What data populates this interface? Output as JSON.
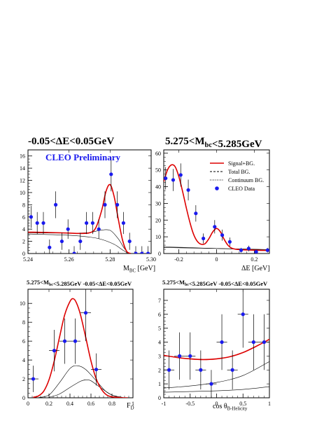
{
  "colors": {
    "fit": "#dd0000",
    "point": "#1a1aee",
    "bg": "#000000"
  },
  "chart_data": [
    {
      "type": "scatter",
      "title": "-0.05<ΔE<0.05GeV",
      "annotation": "CLEO Preliminary",
      "xlabel": "M_BC [GeV]",
      "ylabel": "",
      "xlim": [
        5.24,
        5.3
      ],
      "ylim": [
        0,
        17
      ],
      "xticks": [
        5.24,
        5.26,
        5.28,
        5.3
      ],
      "yticks": [
        0,
        2,
        4,
        6,
        8,
        10,
        12,
        14,
        16
      ],
      "grid": false,
      "points": [
        {
          "x": 5.2415,
          "y": 6,
          "ey": 1.8
        },
        {
          "x": 5.2445,
          "y": 5,
          "ey": 1.8
        },
        {
          "x": 5.2475,
          "y": 5,
          "ey": 1.8
        },
        {
          "x": 5.2505,
          "y": 1,
          "ey": 1.3
        },
        {
          "x": 5.2535,
          "y": 8,
          "ey": 2.2
        },
        {
          "x": 5.2565,
          "y": 2,
          "ey": 1.4
        },
        {
          "x": 5.2595,
          "y": 4,
          "ey": 1.6
        },
        {
          "x": 5.2625,
          "y": 0,
          "ey": 1.2
        },
        {
          "x": 5.2655,
          "y": 2,
          "ey": 1.4
        },
        {
          "x": 5.2685,
          "y": 5,
          "ey": 1.8
        },
        {
          "x": 5.2715,
          "y": 5,
          "ey": 1.8
        },
        {
          "x": 5.2745,
          "y": 4,
          "ey": 1.6
        },
        {
          "x": 5.2775,
          "y": 8,
          "ey": 2.2
        },
        {
          "x": 5.2805,
          "y": 13,
          "ey": 2.8
        },
        {
          "x": 5.2835,
          "y": 8,
          "ey": 2.2
        },
        {
          "x": 5.2865,
          "y": 5,
          "ey": 1.8
        },
        {
          "x": 5.2895,
          "y": 2,
          "ey": 1.4
        },
        {
          "x": 5.2925,
          "y": 0,
          "ey": 1.2
        },
        {
          "x": 5.2955,
          "y": 0,
          "ey": 1.2
        },
        {
          "x": 5.2985,
          "y": 0,
          "ey": 1.2
        }
      ],
      "series": [
        {
          "name": "Signal+BG.",
          "style": "red",
          "x": [
            5.24,
            5.25,
            5.26,
            5.265,
            5.27,
            5.273,
            5.276,
            5.278,
            5.28,
            5.282,
            5.284,
            5.286,
            5.288,
            5.29
          ],
          "y": [
            3.5,
            3.45,
            3.35,
            3.3,
            3.4,
            4.2,
            7.2,
            10.2,
            11.3,
            9.3,
            5.6,
            2.3,
            0.4,
            0
          ]
        },
        {
          "name": "Total BG.",
          "style": "thin",
          "x": [
            5.24,
            5.26,
            5.27,
            5.275,
            5.28,
            5.284,
            5.287,
            5.289
          ],
          "y": [
            3.4,
            3.35,
            3.45,
            3.8,
            3.8,
            2.4,
            0.8,
            0
          ]
        },
        {
          "name": "Continuum BG.",
          "style": "thin",
          "x": [
            5.24,
            5.26,
            5.27,
            5.276,
            5.282,
            5.286,
            5.289
          ],
          "y": [
            3.2,
            3.0,
            2.7,
            2.3,
            1.5,
            0.6,
            0
          ]
        }
      ]
    },
    {
      "type": "scatter",
      "title": "5.275<M_bc<5.285GeV",
      "xlabel": "ΔE [GeV]",
      "ylabel": "",
      "xlim": [
        -0.28,
        0.28
      ],
      "ylim": [
        0,
        62
      ],
      "xticks": [
        -0.2,
        0,
        0.2
      ],
      "yticks": [
        0,
        10,
        20,
        30,
        40,
        50,
        60
      ],
      "grid": false,
      "legend": {
        "position": "top-right",
        "entries": [
          {
            "label": "Signal+BG.",
            "style": "red"
          },
          {
            "label": "Total BG.",
            "style": "dash"
          },
          {
            "label": "Continuum BG.",
            "style": "dot"
          },
          {
            "label": "CLEO Data",
            "style": "point"
          }
        ]
      },
      "points": [
        {
          "x": -0.27,
          "y": 45,
          "ey": 6.7
        },
        {
          "x": -0.23,
          "y": 44,
          "ey": 6.6
        },
        {
          "x": -0.19,
          "y": 47,
          "ey": 6.9
        },
        {
          "x": -0.15,
          "y": 38,
          "ey": 6.2
        },
        {
          "x": -0.11,
          "y": 24,
          "ey": 4.9
        },
        {
          "x": -0.07,
          "y": 9,
          "ey": 3
        },
        {
          "x": -0.01,
          "y": 16,
          "ey": 4
        },
        {
          "x": 0.03,
          "y": 11,
          "ey": 3.3
        },
        {
          "x": 0.07,
          "y": 7,
          "ey": 2.6
        },
        {
          "x": 0.13,
          "y": 2,
          "ey": 1.4
        },
        {
          "x": 0.17,
          "y": 3,
          "ey": 1.7
        },
        {
          "x": 0.21,
          "y": 1,
          "ey": 1
        },
        {
          "x": 0.27,
          "y": 2,
          "ey": 1.4
        }
      ],
      "series": [
        {
          "name": "Signal+BG.",
          "style": "red",
          "x": [
            -0.28,
            -0.26,
            -0.24,
            -0.22,
            -0.2,
            -0.18,
            -0.16,
            -0.14,
            -0.12,
            -0.1,
            -0.08,
            -0.06,
            -0.04,
            -0.02,
            0,
            0.02,
            0.04,
            0.06,
            0.08,
            0.1,
            0.14,
            0.2,
            0.28
          ],
          "y": [
            43,
            50,
            53,
            52,
            46,
            37,
            27,
            18,
            11,
            7,
            5.5,
            6,
            9,
            13,
            15,
            13,
            8.5,
            5,
            3.2,
            2.6,
            2.2,
            2,
            1.8
          ]
        },
        {
          "name": "Total BG.",
          "style": "thin",
          "x": [
            -0.28,
            -0.1,
            0,
            0.1,
            0.28
          ],
          "y": [
            4,
            3.4,
            3,
            2.7,
            2.3
          ]
        },
        {
          "name": "Continuum BG.",
          "style": "thin",
          "x": [
            -0.28,
            0,
            0.28
          ],
          "y": [
            3.6,
            3,
            2.4
          ]
        }
      ]
    },
    {
      "type": "scatter",
      "title": "5.275<M_bc<5.285GeV -0.05<ΔE<0.05GeV",
      "xlabel": "F_D",
      "ylabel": "",
      "xlim": [
        0,
        1
      ],
      "ylim": [
        0,
        11.5
      ],
      "xticks": [
        0,
        0.2,
        0.4,
        0.6,
        0.8,
        1
      ],
      "yticks": [
        0,
        2,
        4,
        6,
        8,
        10
      ],
      "grid": false,
      "points": [
        {
          "x": 0.05,
          "y": 2,
          "ey": 1.4,
          "ex": 0.05
        },
        {
          "x": 0.25,
          "y": 5,
          "ey": 2.2,
          "ex": 0.05
        },
        {
          "x": 0.35,
          "y": 6,
          "ey": 2.4,
          "ex": 0.05
        },
        {
          "x": 0.45,
          "y": 6,
          "ey": 2.4,
          "ex": 0.05
        },
        {
          "x": 0.55,
          "y": 9,
          "ey": 3,
          "ex": 0.05
        },
        {
          "x": 0.65,
          "y": 3,
          "ey": 1.7,
          "ex": 0.05
        }
      ],
      "series": [
        {
          "name": "Signal+BG.",
          "style": "red",
          "x": [
            0.05,
            0.1,
            0.15,
            0.2,
            0.25,
            0.3,
            0.35,
            0.4,
            0.43,
            0.46,
            0.5,
            0.55,
            0.6,
            0.65,
            0.7,
            0.75,
            0.8,
            0.85,
            0.9,
            0.95
          ],
          "y": [
            0.05,
            0.2,
            0.7,
            1.9,
            3.9,
            6.4,
            8.8,
            10.2,
            10.5,
            10.1,
            8.8,
            6.4,
            3.9,
            2,
            0.9,
            0.3,
            0.1,
            0.05,
            0,
            0
          ]
        },
        {
          "name": "Total BG.",
          "style": "thin",
          "x": [
            0.1,
            0.2,
            0.3,
            0.4,
            0.47,
            0.55,
            0.65,
            0.75,
            0.85,
            0.95
          ],
          "y": [
            0.02,
            0.3,
            1.6,
            3.1,
            3.4,
            3.0,
            1.8,
            0.6,
            0.1,
            0
          ]
        },
        {
          "name": "Continuum BG.",
          "style": "thin",
          "x": [
            0.2,
            0.3,
            0.4,
            0.5,
            0.55,
            0.6,
            0.7,
            0.8,
            0.9
          ],
          "y": [
            0.05,
            0.4,
            1.1,
            1.75,
            1.9,
            1.8,
            1.0,
            0.3,
            0.05
          ]
        }
      ]
    },
    {
      "type": "scatter",
      "title": "5.275<M_bc<5.285GeV -0.05<ΔE<0.05GeV",
      "xlabel": "cos θ_B-Helicity",
      "ylabel": "",
      "xlim": [
        -1,
        1
      ],
      "ylim": [
        0,
        7.8
      ],
      "xticks": [
        -1,
        -0.5,
        0,
        0.5,
        1
      ],
      "yticks": [
        0,
        1,
        2,
        3,
        4,
        5,
        6,
        7
      ],
      "grid": false,
      "points": [
        {
          "x": -0.9,
          "y": 2,
          "ey": 1.4,
          "ex": 0.1
        },
        {
          "x": -0.7,
          "y": 3,
          "ey": 1.7,
          "ex": 0.1
        },
        {
          "x": -0.5,
          "y": 3,
          "ey": 1.7,
          "ex": 0.1
        },
        {
          "x": -0.3,
          "y": 2,
          "ey": 1.4,
          "ex": 0.1
        },
        {
          "x": -0.1,
          "y": 1,
          "ey": 1,
          "ex": 0.1
        },
        {
          "x": 0.1,
          "y": 4,
          "ey": 2,
          "ex": 0.1
        },
        {
          "x": 0.3,
          "y": 2,
          "ey": 1.4,
          "ex": 0.1
        },
        {
          "x": 0.5,
          "y": 6,
          "ey": 2.4,
          "ex": 0.1
        },
        {
          "x": 0.7,
          "y": 4,
          "ey": 2,
          "ex": 0.1
        },
        {
          "x": 0.9,
          "y": 4,
          "ey": 2,
          "ex": 0.1
        }
      ],
      "series": [
        {
          "name": "Signal+BG.",
          "style": "red",
          "x": [
            -1,
            -0.75,
            -0.5,
            -0.25,
            0,
            0.25,
            0.5,
            0.75,
            1
          ],
          "y": [
            3.05,
            2.9,
            2.8,
            2.75,
            2.8,
            2.95,
            3.25,
            3.7,
            4.2
          ]
        },
        {
          "name": "Total BG.",
          "style": "thin",
          "x": [
            -1,
            -0.5,
            0,
            0.5,
            1
          ],
          "y": [
            0.7,
            0.85,
            1.1,
            1.6,
            2.6
          ]
        },
        {
          "name": "Continuum BG.",
          "style": "thin",
          "x": [
            -1,
            -0.5,
            0,
            0.5,
            1
          ],
          "y": [
            0.4,
            0.45,
            0.5,
            0.6,
            0.8
          ]
        }
      ]
    }
  ]
}
